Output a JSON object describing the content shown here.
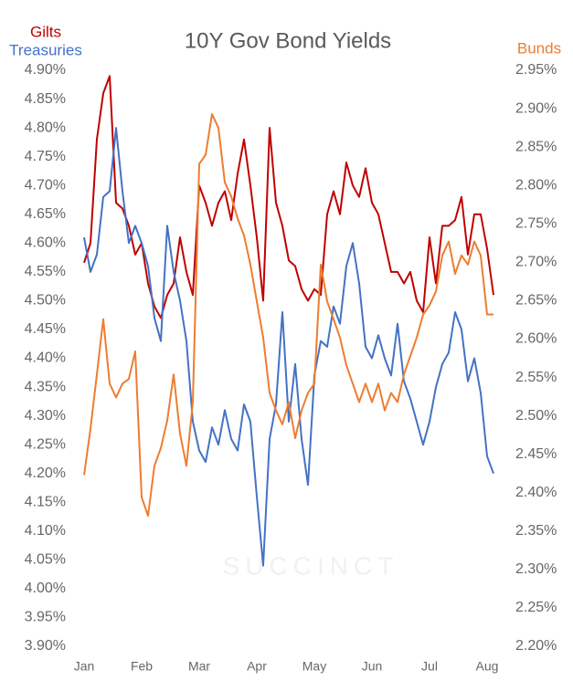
{
  "chart_data": {
    "type": "line",
    "title": "10Y Gov Bond Yields",
    "watermark": "SUCCINCT",
    "categories": [
      "Jan",
      null,
      null,
      null,
      null,
      null,
      null,
      null,
      null,
      "Feb",
      null,
      null,
      null,
      null,
      null,
      null,
      null,
      null,
      "Mar",
      null,
      null,
      null,
      null,
      null,
      null,
      null,
      null,
      "Apr",
      null,
      null,
      null,
      null,
      null,
      null,
      null,
      null,
      "May",
      null,
      null,
      null,
      null,
      null,
      null,
      null,
      null,
      "Jun",
      null,
      null,
      null,
      null,
      null,
      null,
      null,
      null,
      "Jul",
      null,
      null,
      null,
      null,
      null,
      null,
      null,
      null,
      "Aug",
      null
    ],
    "series": [
      {
        "name": "Gilts",
        "color": "#c00000",
        "values": [
          4.566,
          4.6,
          4.78,
          4.86,
          4.89,
          4.67,
          4.66,
          4.63,
          4.58,
          4.6,
          4.53,
          4.49,
          4.47,
          4.51,
          4.53,
          4.61,
          4.55,
          4.51,
          4.7,
          4.67,
          4.63,
          4.67,
          4.69,
          4.64,
          4.72,
          4.78,
          4.7,
          4.61,
          4.5,
          4.8,
          4.67,
          4.63,
          4.57,
          4.56,
          4.52,
          4.5,
          4.52,
          4.51,
          4.65,
          4.69,
          4.65,
          4.74,
          4.7,
          4.68,
          4.73,
          4.67,
          4.65,
          4.6,
          4.55,
          4.55,
          4.53,
          4.55,
          4.5,
          4.48,
          4.61,
          4.53,
          4.63,
          4.63,
          4.64,
          4.68,
          4.58,
          4.65,
          4.65,
          4.59,
          4.51
        ]
      },
      {
        "name": "Treasuries",
        "color": "#4472c4",
        "values": [
          4.61,
          4.55,
          4.58,
          4.68,
          4.69,
          4.8,
          4.69,
          4.6,
          4.63,
          4.6,
          4.56,
          4.47,
          4.43,
          4.63,
          4.55,
          4.5,
          4.43,
          4.29,
          4.24,
          4.22,
          4.28,
          4.25,
          4.31,
          4.26,
          4.24,
          4.32,
          4.29,
          4.16,
          4.04,
          4.26,
          4.32,
          4.48,
          4.29,
          4.39,
          4.26,
          4.18,
          4.37,
          4.43,
          4.42,
          4.49,
          4.46,
          4.56,
          4.6,
          4.53,
          4.42,
          4.4,
          4.44,
          4.4,
          4.37,
          4.46,
          4.36,
          4.33,
          4.29,
          4.25,
          4.29,
          4.35,
          4.39,
          4.41,
          4.48,
          4.45,
          4.36,
          4.4,
          4.34,
          4.23,
          4.2
        ]
      },
      {
        "name": "Bunds",
        "color": "#ed7d31",
        "axis": "y2",
        "values": [
          2.423,
          2.483,
          2.554,
          2.626,
          2.542,
          2.524,
          2.542,
          2.548,
          2.584,
          2.394,
          2.37,
          2.435,
          2.458,
          2.494,
          2.554,
          2.477,
          2.435,
          2.518,
          2.828,
          2.84,
          2.893,
          2.875,
          2.804,
          2.786,
          2.757,
          2.735,
          2.697,
          2.649,
          2.602,
          2.53,
          2.507,
          2.489,
          2.518,
          2.471,
          2.507,
          2.53,
          2.542,
          2.697,
          2.649,
          2.626,
          2.602,
          2.566,
          2.542,
          2.518,
          2.542,
          2.518,
          2.542,
          2.507,
          2.53,
          2.518,
          2.554,
          2.578,
          2.602,
          2.632,
          2.644,
          2.662,
          2.709,
          2.727,
          2.685,
          2.709,
          2.697,
          2.727,
          2.709,
          2.632,
          2.632
        ]
      }
    ],
    "ylim": [
      3.9,
      4.9
    ],
    "yticks": [
      {
        "value": 4.9,
        "label": "4.90%"
      },
      {
        "value": 4.85,
        "label": "4.85%"
      },
      {
        "value": 4.8,
        "label": "4.80%"
      },
      {
        "value": 4.75,
        "label": "4.75%"
      },
      {
        "value": 4.7,
        "label": "4.70%"
      },
      {
        "value": 4.65,
        "label": "4.65%"
      },
      {
        "value": 4.6,
        "label": "4.60%"
      },
      {
        "value": 4.55,
        "label": "4.55%"
      },
      {
        "value": 4.5,
        "label": "4.50%"
      },
      {
        "value": 4.45,
        "label": "4.45%"
      },
      {
        "value": 4.4,
        "label": "4.40%"
      },
      {
        "value": 4.35,
        "label": "4.35%"
      },
      {
        "value": 4.3,
        "label": "4.30%"
      },
      {
        "value": 4.25,
        "label": "4.25%"
      },
      {
        "value": 4.2,
        "label": "4.20%"
      },
      {
        "value": 4.15,
        "label": "4.15%"
      },
      {
        "value": 4.1,
        "label": "4.10%"
      },
      {
        "value": 4.05,
        "label": "4.05%"
      },
      {
        "value": 4.0,
        "label": "4.00%"
      },
      {
        "value": 3.95,
        "label": "3.95%"
      },
      {
        "value": 3.9,
        "label": "3.90%"
      }
    ],
    "y2lim": [
      2.2,
      2.95
    ],
    "y2ticks": [
      {
        "value": 2.95,
        "label": "2.95%"
      },
      {
        "value": 2.9,
        "label": "2.90%"
      },
      {
        "value": 2.85,
        "label": "2.85%"
      },
      {
        "value": 2.8,
        "label": "2.80%"
      },
      {
        "value": 2.75,
        "label": "2.75%"
      },
      {
        "value": 2.7,
        "label": "2.70%"
      },
      {
        "value": 2.65,
        "label": "2.65%"
      },
      {
        "value": 2.6,
        "label": "2.60%"
      },
      {
        "value": 2.55,
        "label": "2.55%"
      },
      {
        "value": 2.5,
        "label": "2.50%"
      },
      {
        "value": 2.45,
        "label": "2.45%"
      },
      {
        "value": 2.4,
        "label": "2.40%"
      },
      {
        "value": 2.35,
        "label": "2.35%"
      },
      {
        "value": 2.3,
        "label": "2.30%"
      },
      {
        "value": 2.25,
        "label": "2.25%"
      },
      {
        "value": 2.2,
        "label": "2.20%"
      }
    ],
    "grid": false
  }
}
